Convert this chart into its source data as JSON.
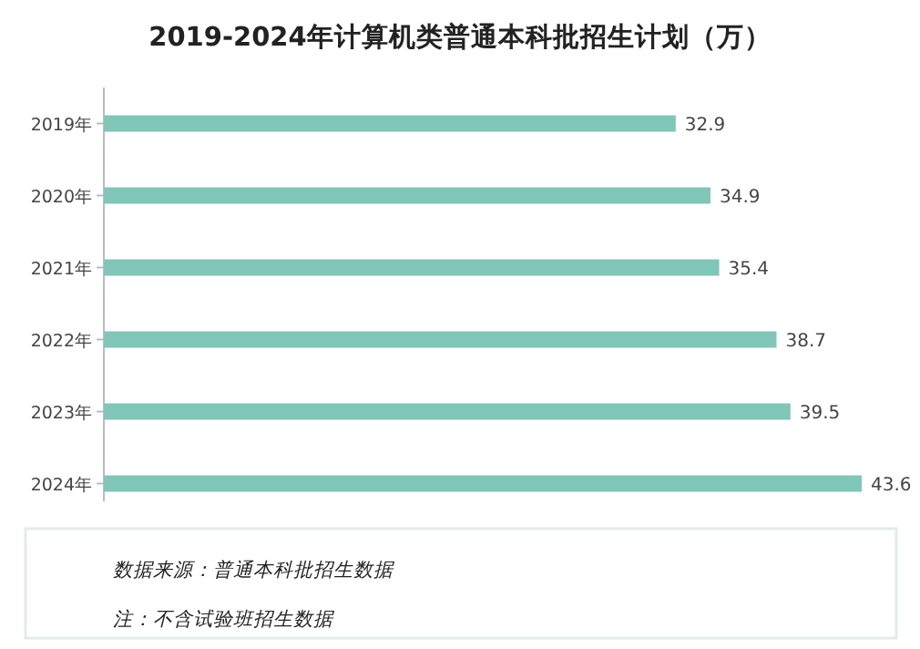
{
  "chart_data": {
    "type": "bar",
    "orientation": "horizontal",
    "title": "2019-2024年计算机类普通本科批招生计划（万）",
    "categories": [
      "2019年",
      "2020年",
      "2021年",
      "2022年",
      "2023年",
      "2024年"
    ],
    "values": [
      32.9,
      34.9,
      35.4,
      38.7,
      39.5,
      43.6
    ],
    "color": "#80c6b9",
    "data_labels": true,
    "annotations": [
      "数据来源：普通本科批招生数据",
      "注：不含试验班招生数据"
    ]
  }
}
